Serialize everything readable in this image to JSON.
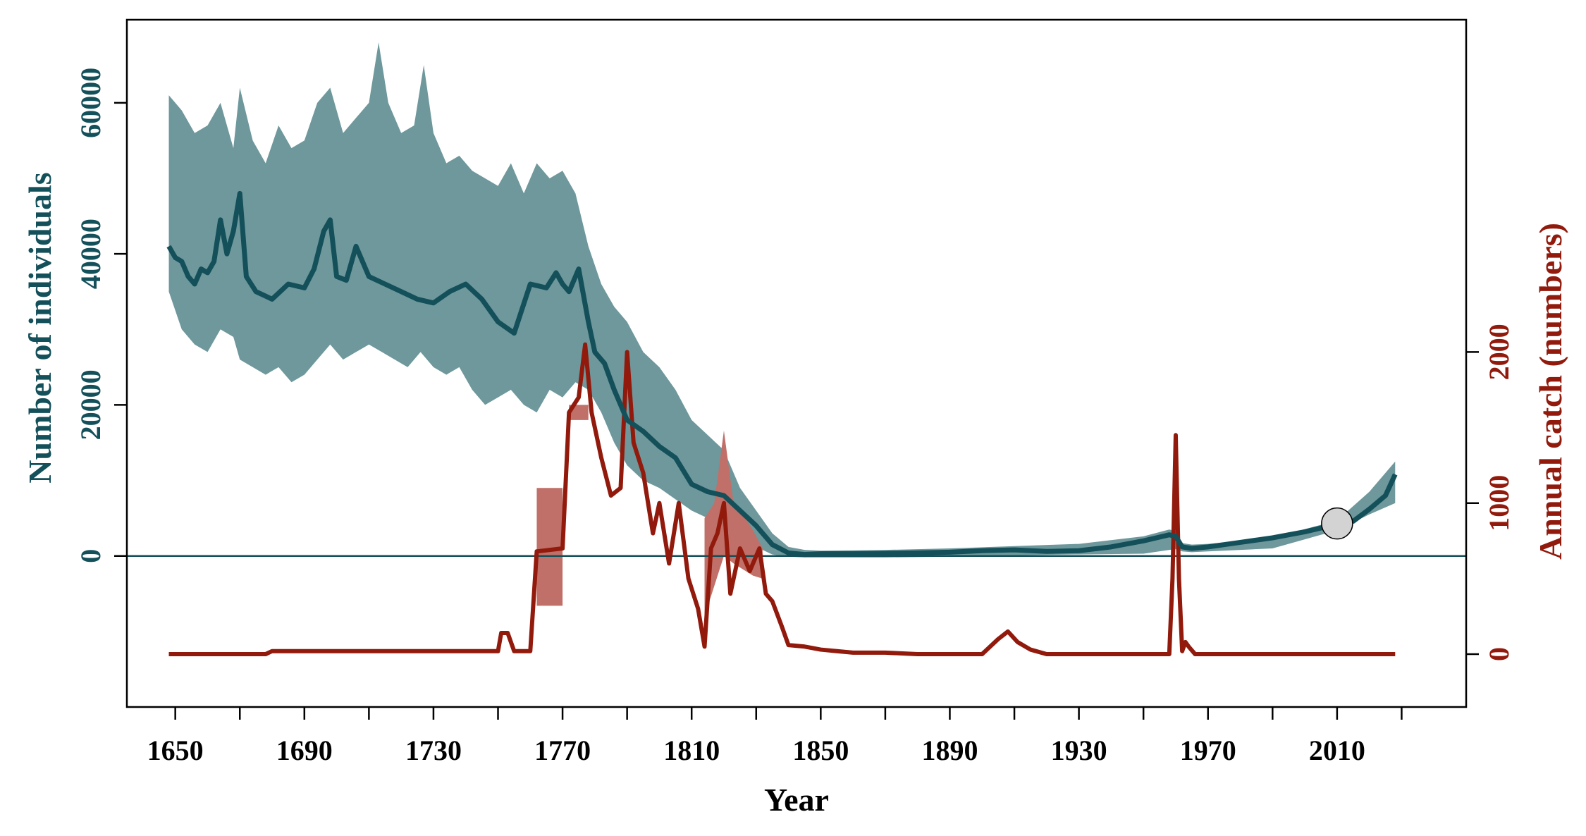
{
  "chart_data": {
    "type": "line",
    "xlabel": "Year",
    "ylabel_left": "Number of individuals",
    "ylabel_right": "Annual catch (numbers)",
    "x_ticks": [
      1650,
      1690,
      1730,
      1770,
      1810,
      1850,
      1890,
      1930,
      1970,
      2010
    ],
    "x_minor_ticks": [
      1670,
      1710,
      1750,
      1790,
      1830,
      1870,
      1910,
      1950,
      1990,
      2030
    ],
    "xlim": [
      1635,
      2050
    ],
    "ylim_left": [
      -20000,
      71000
    ],
    "ylim_right": [
      -350,
      4200
    ],
    "y_ticks_left": [
      0,
      20000,
      40000,
      60000
    ],
    "y_ticks_right": [
      0,
      1000,
      2000
    ],
    "colors": {
      "population": "#14505a",
      "population_band": "#6e989c",
      "catch": "#911a0c",
      "catch_band": "#c07068",
      "zero_line": "#14505a",
      "marker_fill": "#d3d3d3"
    },
    "series": [
      {
        "axis": "left",
        "x": [
          1648,
          1650,
          1652,
          1654,
          1656,
          1658,
          1660,
          1662,
          1664,
          1666,
          1668,
          1670,
          1672,
          1675,
          1680,
          1685,
          1690,
          1693,
          1696,
          1698,
          1700,
          1703,
          1706,
          1710,
          1715,
          1720,
          1725,
          1730,
          1735,
          1740,
          1745,
          1750,
          1755,
          1760,
          1765,
          1768,
          1770,
          1772,
          1775,
          1778,
          1780,
          1783,
          1786,
          1790,
          1795,
          1800,
          1805,
          1810,
          1815,
          1820,
          1825,
          1830,
          1835,
          1840,
          1845,
          1850,
          1860,
          1870,
          1880,
          1890,
          1900,
          1910,
          1920,
          1930,
          1940,
          1950,
          1958,
          1960,
          1962,
          1965,
          1970,
          1980,
          1990,
          2000,
          2010,
          2015,
          2020,
          2025,
          2028
        ],
        "y": [
          41000,
          39500,
          39000,
          37000,
          36000,
          38000,
          37500,
          39000,
          44500,
          40000,
          43000,
          48000,
          37000,
          35000,
          34000,
          36000,
          35500,
          38000,
          43000,
          44500,
          37000,
          36500,
          41000,
          37000,
          36000,
          35000,
          34000,
          33500,
          35000,
          36000,
          34000,
          31000,
          29500,
          36000,
          35500,
          37500,
          36000,
          35000,
          38000,
          31000,
          27000,
          25500,
          22000,
          18000,
          16500,
          14500,
          13000,
          9500,
          8500,
          8000,
          6000,
          4000,
          1500,
          400,
          200,
          300,
          300,
          350,
          400,
          500,
          700,
          800,
          600,
          700,
          1200,
          2000,
          2800,
          2600,
          1200,
          1000,
          1200,
          1800,
          2400,
          3200,
          4200,
          4600,
          6200,
          8000,
          10800
        ]
      },
      {
        "axis": "left",
        "x": [
          1648,
          1652,
          1656,
          1660,
          1664,
          1668,
          1670,
          1674,
          1678,
          1682,
          1686,
          1690,
          1694,
          1698,
          1702,
          1706,
          1710,
          1713,
          1716,
          1720,
          1724,
          1727,
          1730,
          1734,
          1738,
          1742,
          1746,
          1750,
          1754,
          1758,
          1762,
          1766,
          1770,
          1774,
          1778,
          1782,
          1786,
          1790,
          1795,
          1800,
          1805,
          1810,
          1815,
          1820,
          1825,
          1830,
          1835,
          1840,
          1845,
          1850,
          1870,
          1890,
          1910,
          1930,
          1950,
          1958,
          1960,
          1962,
          1965,
          1970,
          1990,
          2010,
          2020,
          2028
        ],
        "y": [
          61000,
          59000,
          56000,
          57000,
          60000,
          54000,
          62000,
          55000,
          52000,
          57000,
          54000,
          55000,
          60000,
          62000,
          56000,
          58000,
          60000,
          68000,
          60000,
          56000,
          57000,
          65000,
          56000,
          52000,
          53000,
          51000,
          50000,
          49000,
          52000,
          48000,
          52000,
          50000,
          51000,
          48000,
          41000,
          36000,
          33000,
          31000,
          27000,
          25000,
          22000,
          18000,
          16000,
          14000,
          9000,
          6000,
          3000,
          1200,
          800,
          700,
          800,
          1000,
          1300,
          1600,
          2600,
          3500,
          3300,
          1700,
          1500,
          1600,
          2400,
          4700,
          8500,
          12500
        ],
        "role": "upper_band"
      },
      {
        "axis": "left",
        "x": [
          1648,
          1652,
          1656,
          1660,
          1664,
          1668,
          1670,
          1674,
          1678,
          1682,
          1686,
          1690,
          1694,
          1698,
          1702,
          1706,
          1710,
          1714,
          1718,
          1722,
          1726,
          1730,
          1734,
          1738,
          1742,
          1746,
          1750,
          1754,
          1758,
          1762,
          1766,
          1770,
          1774,
          1778,
          1782,
          1786,
          1790,
          1795,
          1800,
          1805,
          1810,
          1815,
          1820,
          1825,
          1830,
          1835,
          1840,
          1845,
          1850,
          1870,
          1890,
          1910,
          1930,
          1950,
          1958,
          1960,
          1962,
          1965,
          1970,
          1990,
          2010,
          2020,
          2028
        ],
        "y": [
          35000,
          30000,
          28000,
          27000,
          30000,
          29000,
          26000,
          25000,
          24000,
          25000,
          23000,
          24000,
          26000,
          28000,
          26000,
          27000,
          28000,
          27000,
          26000,
          25000,
          27000,
          25000,
          24000,
          25000,
          22000,
          20000,
          21000,
          22000,
          20000,
          19000,
          22000,
          21000,
          23000,
          22000,
          19000,
          15000,
          12000,
          10000,
          9000,
          7500,
          6000,
          5000,
          4000,
          2500,
          1200,
          200,
          -100,
          -200,
          -200,
          -200,
          -100,
          100,
          200,
          300,
          800,
          900,
          600,
          500,
          600,
          1000,
          3400,
          5500,
          7000
        ],
        "role": "lower_band"
      },
      {
        "axis": "right",
        "x": [
          1648,
          1678,
          1680,
          1750,
          1751,
          1753,
          1755,
          1760,
          1762,
          1770,
          1772,
          1775,
          1777,
          1779,
          1782,
          1785,
          1788,
          1790,
          1792,
          1795,
          1798,
          1800,
          1803,
          1806,
          1809,
          1812,
          1814,
          1816,
          1818,
          1820,
          1822,
          1825,
          1828,
          1831,
          1833,
          1835,
          1838,
          1840,
          1845,
          1850,
          1855,
          1860,
          1870,
          1880,
          1890,
          1900,
          1905,
          1908,
          1911,
          1915,
          1920,
          1930,
          1940,
          1950,
          1958,
          1959,
          1960,
          1961,
          1962,
          1963,
          1964,
          1966,
          1970,
          2000,
          2028
        ],
        "y": [
          0,
          0,
          20,
          20,
          140,
          140,
          20,
          20,
          680,
          700,
          1600,
          1700,
          2050,
          1600,
          1300,
          1050,
          1100,
          2000,
          1400,
          1200,
          800,
          1000,
          600,
          1000,
          500,
          300,
          50,
          700,
          800,
          1000,
          400,
          700,
          550,
          700,
          400,
          350,
          180,
          60,
          50,
          30,
          20,
          10,
          10,
          0,
          0,
          0,
          100,
          150,
          80,
          30,
          0,
          0,
          0,
          0,
          0,
          500,
          1450,
          500,
          20,
          80,
          50,
          0,
          0,
          0,
          0
        ]
      },
      {
        "axis": "right",
        "x": [
          1762,
          1770,
          1770,
          1762
        ],
        "y": [
          1100,
          1100,
          320,
          320
        ],
        "role": "uncertainty_band"
      },
      {
        "axis": "right",
        "x": [
          1814,
          1817,
          1820,
          1823,
          1826,
          1829,
          1832,
          1832,
          1829,
          1826,
          1823,
          1820,
          1817,
          1814
        ],
        "y": [
          900,
          1000,
          1480,
          1000,
          920,
          820,
          700,
          500,
          520,
          560,
          600,
          650,
          450,
          250
        ],
        "role": "uncertainty_band"
      },
      {
        "axis": "right",
        "x": [
          1772,
          1778,
          1778,
          1772
        ],
        "y": [
          1650,
          1650,
          1550,
          1550
        ],
        "role": "uncertainty_band"
      }
    ],
    "marker": {
      "axis": "left",
      "x": 2010,
      "y": 4300
    }
  }
}
